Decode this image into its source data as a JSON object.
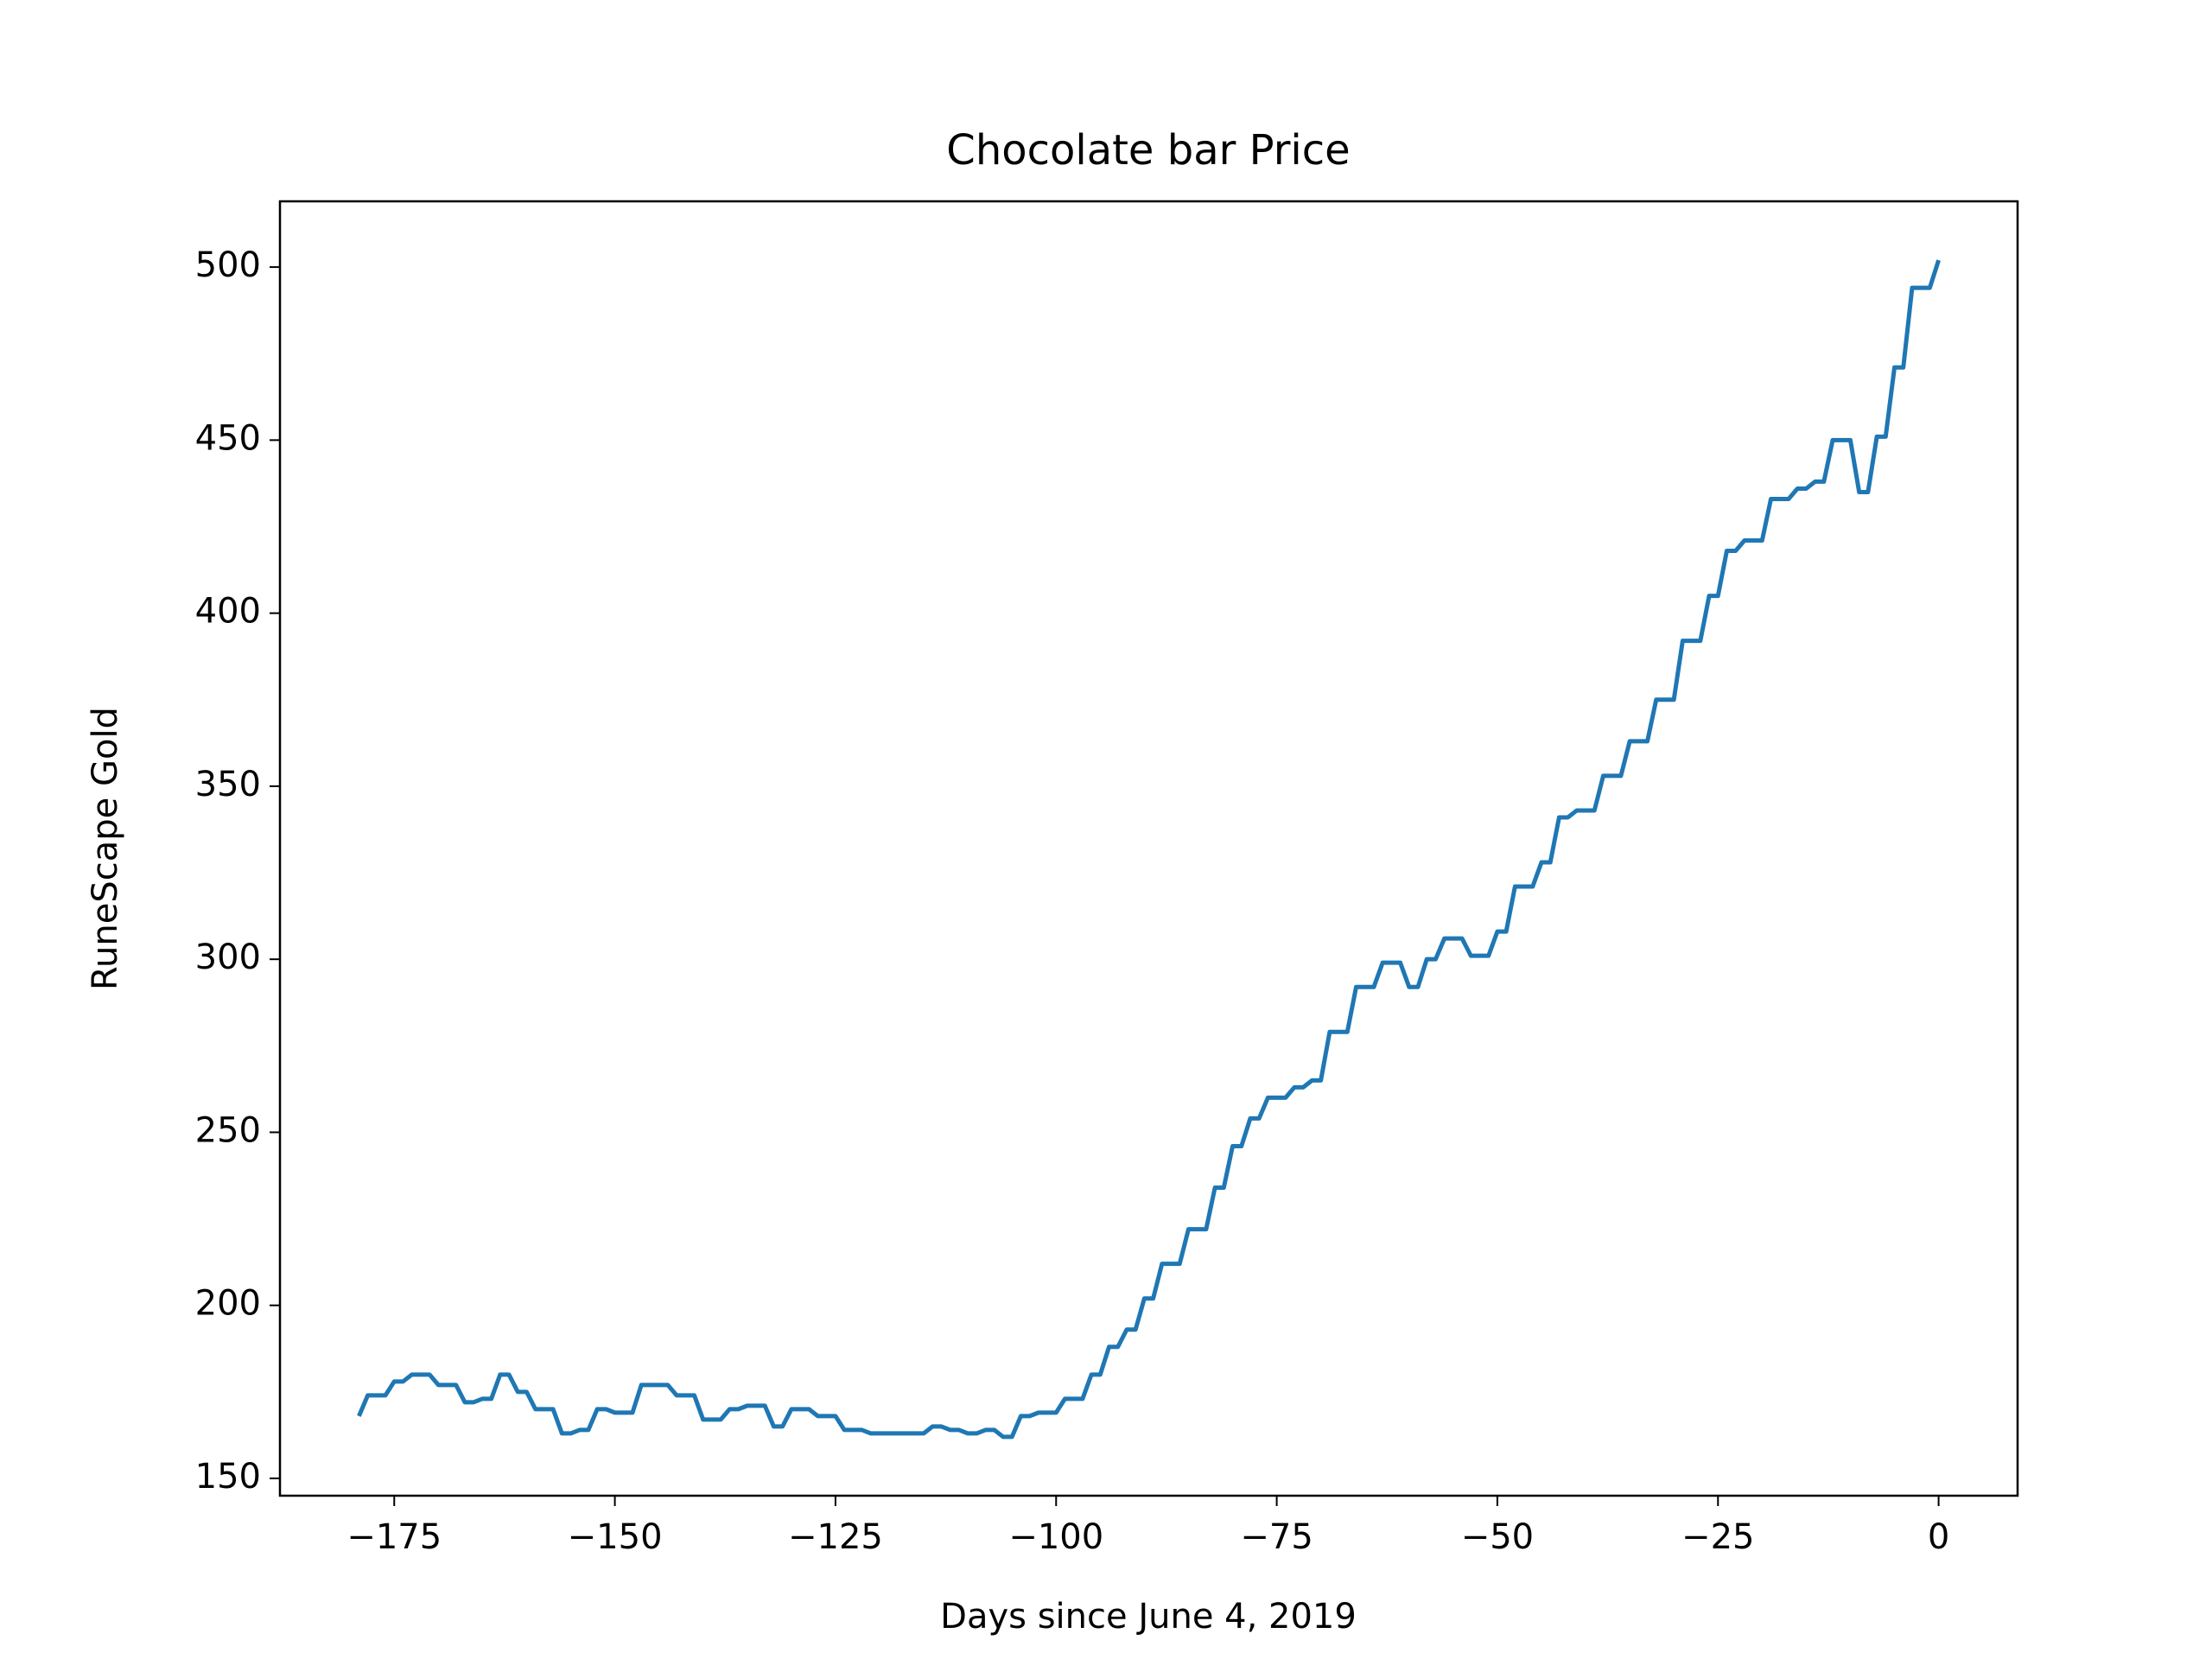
{
  "chart_data": {
    "type": "line",
    "title": "Chocolate bar Price",
    "x_label": "Days since June 4, 2019",
    "y_label": "RuneScape Gold",
    "x": [
      -179,
      -178,
      -177,
      -176,
      -175,
      -174,
      -173,
      -172,
      -171,
      -170,
      -169,
      -168,
      -167,
      -166,
      -165,
      -164,
      -163,
      -162,
      -161,
      -160,
      -159,
      -158,
      -157,
      -156,
      -155,
      -154,
      -153,
      -152,
      -151,
      -150,
      -149,
      -148,
      -147,
      -146,
      -145,
      -144,
      -143,
      -142,
      -141,
      -140,
      -139,
      -138,
      -137,
      -136,
      -135,
      -134,
      -133,
      -132,
      -131,
      -130,
      -129,
      -128,
      -127,
      -126,
      -125,
      -124,
      -123,
      -122,
      -121,
      -120,
      -119,
      -118,
      -117,
      -116,
      -115,
      -114,
      -113,
      -112,
      -111,
      -110,
      -109,
      -108,
      -107,
      -106,
      -105,
      -104,
      -103,
      -102,
      -101,
      -100,
      -99,
      -98,
      -97,
      -96,
      -95,
      -94,
      -93,
      -92,
      -91,
      -90,
      -89,
      -88,
      -87,
      -86,
      -85,
      -84,
      -83,
      -82,
      -81,
      -80,
      -79,
      -78,
      -77,
      -76,
      -75,
      -74,
      -73,
      -72,
      -71,
      -70,
      -69,
      -68,
      -67,
      -66,
      -65,
      -64,
      -63,
      -62,
      -61,
      -60,
      -59,
      -58,
      -57,
      -56,
      -55,
      -54,
      -53,
      -52,
      -51,
      -50,
      -49,
      -48,
      -47,
      -46,
      -45,
      -44,
      -43,
      -42,
      -41,
      -40,
      -39,
      -38,
      -37,
      -36,
      -35,
      -34,
      -33,
      -32,
      -31,
      -30,
      -29,
      -28,
      -27,
      -26,
      -25,
      -24,
      -23,
      -22,
      -21,
      -20,
      -19,
      -18,
      -17,
      -16,
      -15,
      -14,
      -13,
      -12,
      -11,
      -10,
      -9,
      -8,
      -7,
      -6,
      -5,
      -4,
      -3,
      -2,
      -1,
      0
    ],
    "series": [
      {
        "color": "#1f77b4",
        "values": [
          168,
          174,
          174,
          174,
          178,
          178,
          180,
          180,
          180,
          177,
          177,
          177,
          172,
          172,
          173,
          173,
          180,
          180,
          175,
          175,
          170,
          170,
          170,
          163,
          163,
          164,
          164,
          170,
          170,
          169,
          169,
          169,
          177,
          177,
          177,
          177,
          174,
          174,
          174,
          167,
          167,
          167,
          170,
          170,
          171,
          171,
          171,
          165,
          165,
          170,
          170,
          170,
          168,
          168,
          168,
          164,
          164,
          164,
          163,
          163,
          163,
          163,
          163,
          163,
          163,
          165,
          165,
          164,
          164,
          163,
          163,
          164,
          164,
          162,
          162,
          168,
          168,
          169,
          169,
          169,
          173,
          173,
          173,
          180,
          180,
          188,
          188,
          193,
          193,
          202,
          202,
          212,
          212,
          212,
          222,
          222,
          222,
          234,
          234,
          246,
          246,
          254,
          254,
          260,
          260,
          260,
          263,
          263,
          265,
          265,
          279,
          279,
          279,
          292,
          292,
          292,
          299,
          299,
          299,
          292,
          292,
          300,
          300,
          306,
          306,
          306,
          301,
          301,
          301,
          308,
          308,
          321,
          321,
          321,
          328,
          328,
          341,
          341,
          343,
          343,
          343,
          353,
          353,
          353,
          363,
          363,
          363,
          375,
          375,
          375,
          392,
          392,
          392,
          405,
          405,
          418,
          418,
          421,
          421,
          421,
          433,
          433,
          433,
          436,
          436,
          438,
          438,
          450,
          450,
          450,
          435,
          435,
          451,
          451,
          471,
          471,
          494,
          494,
          494,
          502
        ]
      }
    ],
    "xlim": [
      -187.95,
      8.95
    ],
    "ylim": [
      145,
      519
    ],
    "xticks": [
      {
        "value": -175,
        "label": "−175"
      },
      {
        "value": -150,
        "label": "−150"
      },
      {
        "value": -125,
        "label": "−125"
      },
      {
        "value": -100,
        "label": "−100"
      },
      {
        "value": -75,
        "label": "−75"
      },
      {
        "value": -50,
        "label": "−50"
      },
      {
        "value": -25,
        "label": "−25"
      },
      {
        "value": 0,
        "label": "0"
      }
    ],
    "yticks": [
      150,
      200,
      250,
      300,
      350,
      400,
      450,
      500
    ]
  }
}
